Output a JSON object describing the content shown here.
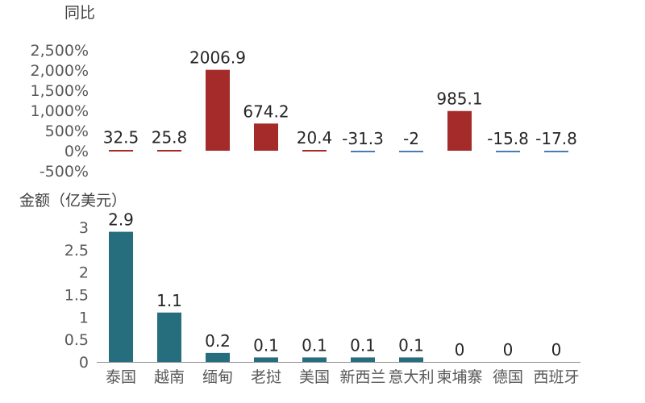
{
  "chart_data": [
    {
      "type": "bar",
      "ylabel": "同比",
      "categories": [
        "泰国",
        "越南",
        "缅甸",
        "老挝",
        "美国",
        "新西兰",
        "意大利",
        "柬埔寨",
        "德国",
        "西班牙"
      ],
      "values": [
        32.5,
        25.8,
        2006.9,
        674.2,
        20.4,
        -31.3,
        -2,
        985.1,
        -15.8,
        -17.8
      ],
      "data_labels": [
        "32.5",
        "25.8",
        "2006.9",
        "674.2",
        "20.4",
        "-31.3",
        "-2",
        "985.1",
        "-15.8",
        "-17.8"
      ],
      "yticks": [
        "2,500%",
        "2,000%",
        "1,500%",
        "1,000%",
        "500%",
        "0%",
        "-500%"
      ],
      "ylim": [
        -500,
        2500
      ],
      "grid": false,
      "colors": {
        "positive": "#A52A2A",
        "negative": "#4A7BB7"
      }
    },
    {
      "type": "bar",
      "ylabel": "金额（亿美元）",
      "categories": [
        "泰国",
        "越南",
        "缅甸",
        "老挝",
        "美国",
        "新西兰",
        "意大利",
        "柬埔寨",
        "德国",
        "西班牙"
      ],
      "values": [
        2.9,
        1.1,
        0.2,
        0.1,
        0.1,
        0.1,
        0.1,
        0,
        0,
        0
      ],
      "data_labels": [
        "2.9",
        "1.1",
        "0.2",
        "0.1",
        "0.1",
        "0.1",
        "0.1",
        "0",
        "0",
        "0"
      ],
      "yticks": [
        "3",
        "2.5",
        "2",
        "1.5",
        "1",
        "0.5",
        "0"
      ],
      "ylim": [
        0,
        3
      ],
      "grid": false,
      "colors": {
        "bar": "#266D7D"
      }
    }
  ]
}
